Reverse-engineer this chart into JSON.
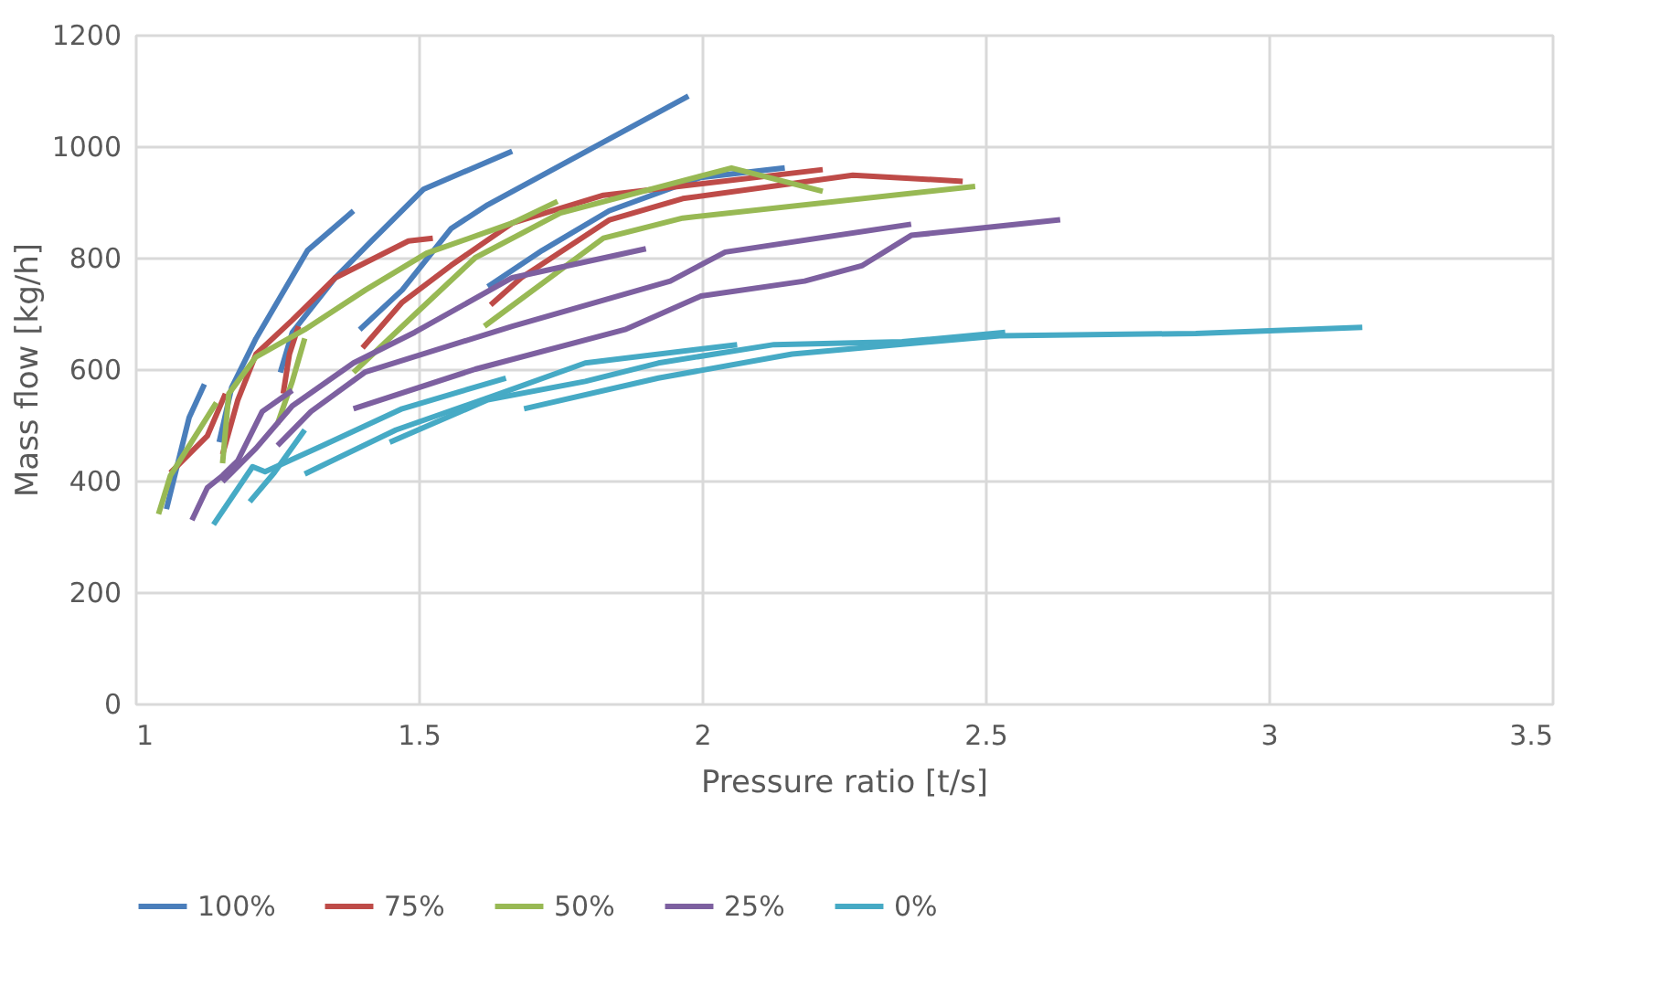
{
  "chart_data": {
    "type": "line",
    "xlabel": "Pressure ratio [t/s]",
    "ylabel": "Mass flow [kg/h]",
    "xlim": [
      1,
      3.5
    ],
    "xticks": [
      1,
      1.5,
      2,
      2.5,
      3,
      3.5
    ],
    "ylim": [
      0,
      1200
    ],
    "yticks": [
      0,
      200,
      400,
      600,
      800,
      1000,
      1200
    ],
    "grid": true,
    "legend": "bottom",
    "marker": "none",
    "line_style": "solid",
    "series": [
      {
        "name": "100%",
        "color": "#4a7ebb",
        "x": [
          1.055,
          1.095,
          1.122
        ],
        "values": [
          349,
          513,
          573
        ]
      },
      {
        "color": "#4a7ebb",
        "x": [
          1.148,
          1.17,
          1.213,
          1.304,
          1.385
        ],
        "values": [
          469,
          567,
          655,
          813,
          884
        ]
      },
      {
        "color": "#4a7ebb",
        "x": [
          1.256,
          1.277,
          1.353,
          1.417,
          1.509,
          1.665
        ],
        "values": [
          594,
          666,
          764,
          830,
          923,
          991
        ]
      },
      {
        "color": "#4a7ebb",
        "x": [
          1.396,
          1.471,
          1.557,
          1.622,
          1.976
        ],
        "values": [
          671,
          742,
          852,
          895,
          1090
        ]
      },
      {
        "color": "#4a7ebb",
        "x": [
          1.622,
          1.718,
          1.836,
          1.998,
          2.146
        ],
        "values": [
          748,
          813,
          884,
          944,
          961
        ]
      },
      {
        "name": "75%",
        "color": "#be4b48",
        "x": [
          1.062,
          1.127,
          1.159
        ],
        "values": [
          414,
          480,
          556
        ]
      },
      {
        "color": "#be4b48",
        "x": [
          1.154,
          1.181,
          1.213,
          1.277,
          1.353,
          1.482,
          1.525
        ],
        "values": [
          447,
          545,
          627,
          688,
          764,
          830,
          835
        ]
      },
      {
        "color": "#be4b48",
        "x": [
          1.261,
          1.272,
          1.288
        ],
        "values": [
          556,
          627,
          677
        ]
      },
      {
        "color": "#be4b48",
        "x": [
          1.401,
          1.471,
          1.557,
          1.665,
          1.826,
          2.213
        ],
        "values": [
          638,
          720,
          786,
          862,
          912,
          958
        ]
      },
      {
        "color": "#be4b48",
        "x": [
          1.627,
          1.681,
          1.837,
          1.966,
          2.266,
          2.46
        ],
        "values": [
          715,
          764,
          868,
          906,
          948,
          937
        ]
      },
      {
        "name": "50%",
        "color": "#98b954",
        "x": [
          1.041,
          1.062,
          1.143
        ],
        "values": [
          340,
          409,
          540
        ]
      },
      {
        "color": "#98b954",
        "x": [
          1.154,
          1.165,
          1.213,
          1.299,
          1.406,
          1.514,
          1.665,
          1.745
        ],
        "values": [
          431,
          556,
          622,
          671,
          742,
          808,
          862,
          901
        ]
      },
      {
        "color": "#98b954",
        "x": [
          1.251,
          1.277,
          1.299
        ],
        "values": [
          502,
          578,
          655
        ]
      },
      {
        "color": "#98b954",
        "x": [
          1.385,
          1.493,
          1.6,
          1.75,
          2.052,
          2.213
        ],
        "values": [
          594,
          698,
          800,
          880,
          961,
          919
        ]
      },
      {
        "color": "#98b954",
        "x": [
          1.616,
          1.826,
          1.966,
          2.482
        ],
        "values": [
          677,
          835,
          871,
          928
        ]
      },
      {
        "name": "25%",
        "color": "#7d60a0",
        "x": [
          1.1,
          1.127,
          1.154,
          1.181,
          1.224,
          1.277
        ],
        "values": [
          329,
          387,
          409,
          436,
          524,
          562
        ]
      },
      {
        "color": "#7d60a0",
        "x": [
          1.154,
          1.213,
          1.277,
          1.385,
          1.493,
          1.665,
          1.901
        ],
        "values": [
          398,
          458,
          534,
          611,
          666,
          764,
          816
        ]
      },
      {
        "color": "#7d60a0",
        "x": [
          1.251,
          1.31,
          1.406,
          1.665,
          1.944,
          2.041,
          2.369
        ],
        "values": [
          463,
          524,
          595,
          677,
          758,
          810,
          860
        ]
      },
      {
        "color": "#7d60a0",
        "x": [
          1.385,
          1.6,
          1.864,
          1.998,
          2.181,
          2.283,
          2.369,
          2.632
        ],
        "values": [
          529,
          600,
          671,
          731,
          758,
          786,
          840,
          868
        ]
      },
      {
        "name": "0%",
        "color": "#46aac5",
        "x": [
          1.138,
          1.207,
          1.229,
          1.331,
          1.471,
          1.654
        ],
        "values": [
          321,
          425,
          416,
          463,
          529,
          584
        ]
      },
      {
        "color": "#46aac5",
        "x": [
          1.202,
          1.245,
          1.299
        ],
        "values": [
          362,
          414,
          491
        ]
      },
      {
        "color": "#46aac5",
        "x": [
          1.299,
          1.46,
          1.643,
          1.794,
          2.062
        ],
        "values": [
          412,
          491,
          556,
          611,
          644
        ]
      },
      {
        "color": "#46aac5",
        "x": [
          1.449,
          1.622,
          1.794,
          1.923,
          2.127,
          2.353,
          2.535
        ],
        "values": [
          469,
          545,
          578,
          611,
          644,
          649,
          666
        ]
      },
      {
        "color": "#46aac5",
        "x": [
          1.686,
          1.923,
          2.159,
          2.525,
          2.871,
          3.165
        ],
        "values": [
          529,
          584,
          627,
          660,
          664,
          675
        ]
      }
    ]
  }
}
